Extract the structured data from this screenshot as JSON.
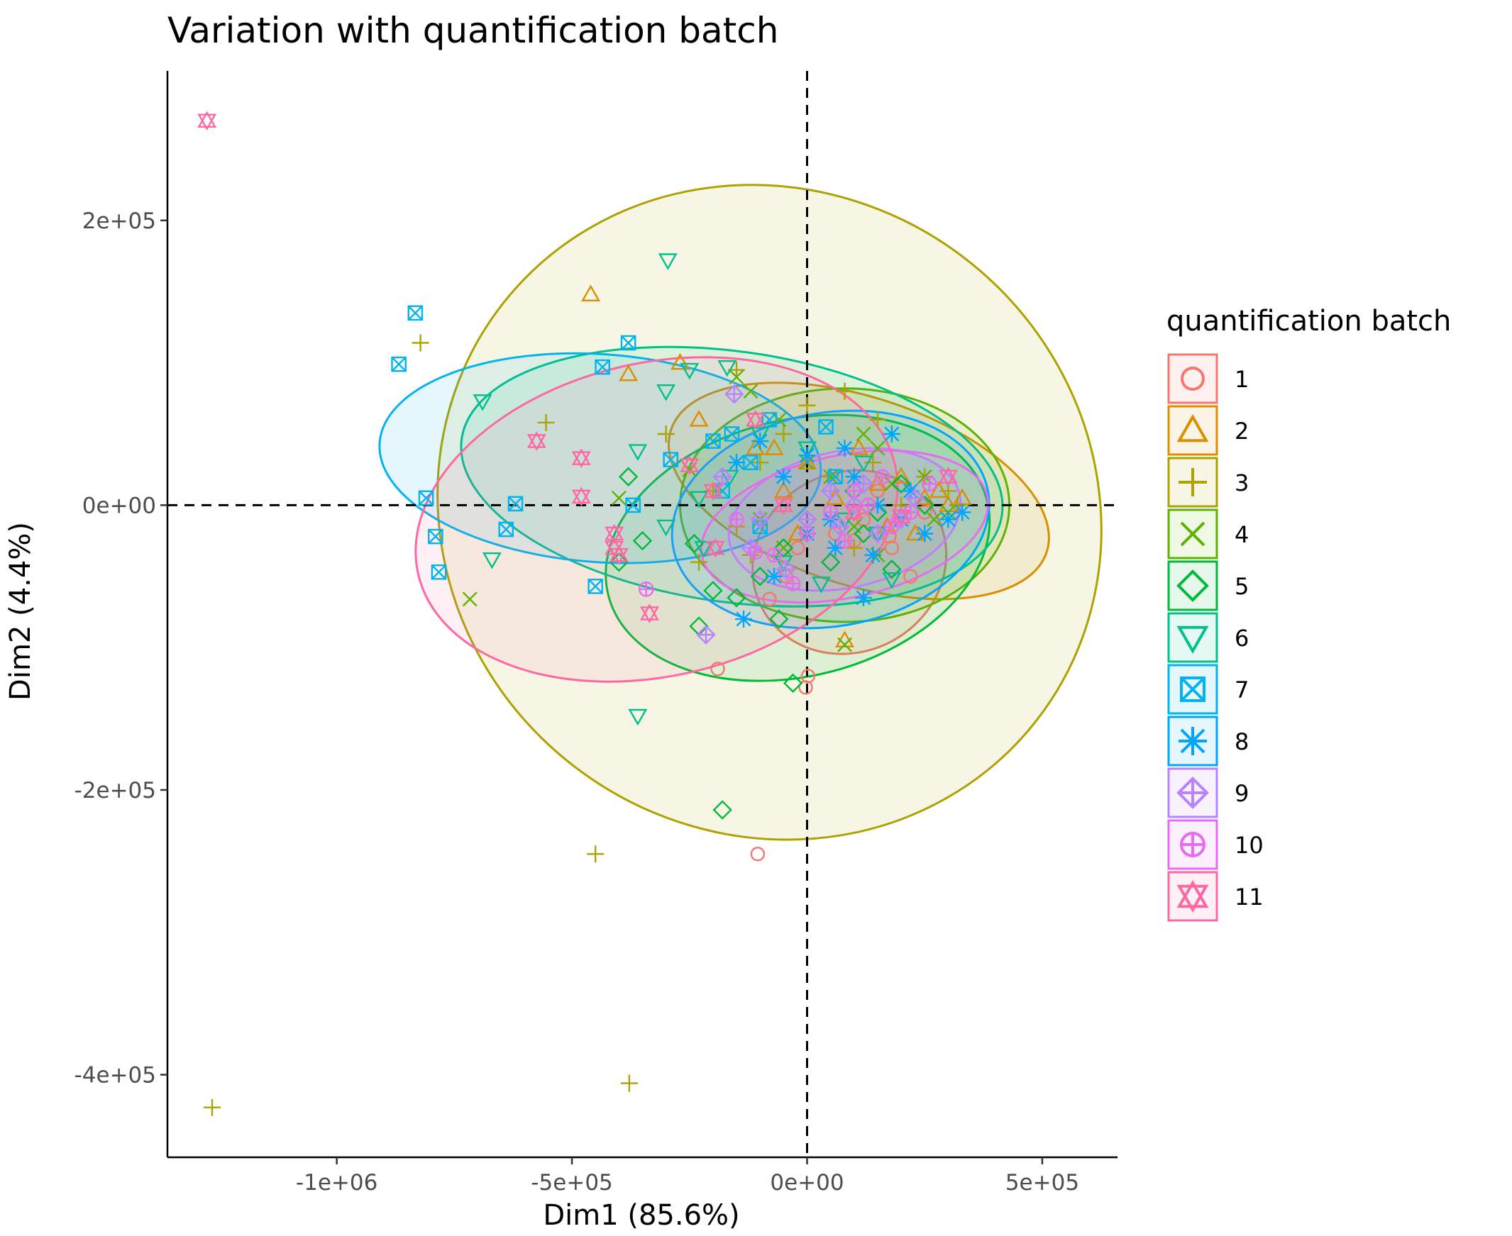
{
  "chart_data": {
    "type": "scatter",
    "title": "Variation with quantification batch",
    "xlabel": "Dim1 (85.6%)",
    "ylabel": "Dim2 (4.4%)",
    "xlim": [
      -1360000,
      660000
    ],
    "ylim": [
      -458000,
      305000
    ],
    "x_ticks": [
      -1000000,
      -500000,
      0,
      500000
    ],
    "x_tick_labels": [
      "-1e+06",
      "-5e+05",
      "0e+00",
      "5e+05"
    ],
    "y_ticks": [
      200000,
      0,
      -200000,
      -400000
    ],
    "y_tick_labels": [
      "2e+05",
      "0e+00",
      "-2e+05",
      "-4e+05"
    ],
    "reference_lines": {
      "x": 0,
      "y": 0,
      "style": "dashed"
    },
    "grid": false,
    "legend": {
      "title": "quantification batch",
      "position": "right"
    },
    "series": [
      {
        "name": "1",
        "color": "#F8766D",
        "shape": "circle-open",
        "ellipse": {
          "cx": 90000,
          "cy": -40000,
          "rx": 210000,
          "ry": 63000,
          "angle": 28
        },
        "points": [
          [
            -190000,
            -115000
          ],
          [
            -105000,
            -245000
          ],
          [
            -3000,
            -128000
          ],
          [
            2000,
            -120000
          ],
          [
            -80000,
            -66000
          ],
          [
            -45000,
            -50000
          ],
          [
            60000,
            -20000
          ],
          [
            120000,
            -10000
          ],
          [
            180000,
            -30000
          ],
          [
            220000,
            -50000
          ],
          [
            150000,
            10000
          ],
          [
            100000,
            -25000
          ],
          [
            250000,
            -5000
          ],
          [
            -20000,
            -30000
          ],
          [
            175000,
            -22000
          ]
        ]
      },
      {
        "name": "2",
        "color": "#DB8E00",
        "shape": "triangle-open",
        "ellipse": {
          "cx": 110000,
          "cy": 10000,
          "rx": 420000,
          "ry": 66000,
          "angle": -18
        },
        "points": [
          [
            -460000,
            148000
          ],
          [
            -380000,
            92000
          ],
          [
            -270000,
            100000
          ],
          [
            -230000,
            60000
          ],
          [
            -110000,
            40000
          ],
          [
            -50000,
            10000
          ],
          [
            0,
            30000
          ],
          [
            80000,
            -95000
          ],
          [
            150000,
            15000
          ],
          [
            200000,
            20000
          ],
          [
            250000,
            5000
          ],
          [
            300000,
            0
          ],
          [
            330000,
            5000
          ],
          [
            -20000,
            -20000
          ],
          [
            110000,
            40000
          ],
          [
            60000,
            5000
          ],
          [
            -70000,
            40000
          ],
          [
            170000,
            -15000
          ],
          [
            230000,
            -20000
          ],
          [
            280000,
            10000
          ]
        ]
      },
      {
        "name": "3",
        "color": "#AEA200",
        "shape": "plus",
        "ellipse": {
          "cx": -80000,
          "cy": -5000,
          "rx": 720000,
          "ry": 225000,
          "angle": -38
        },
        "points": [
          [
            -1265000,
            -423000
          ],
          [
            -378000,
            -406000
          ],
          [
            -450000,
            -245000
          ],
          [
            -822000,
            114000
          ],
          [
            -555000,
            58000
          ],
          [
            -230000,
            -40000
          ],
          [
            -150000,
            -15000
          ],
          [
            -100000,
            30000
          ],
          [
            -50000,
            50000
          ],
          [
            -200000,
            10000
          ],
          [
            0,
            70000
          ],
          [
            80000,
            80000
          ],
          [
            150000,
            60000
          ],
          [
            -150000,
            95000
          ],
          [
            250000,
            20000
          ],
          [
            300000,
            10000
          ],
          [
            100000,
            -30000
          ],
          [
            200000,
            0
          ],
          [
            50000,
            20000
          ],
          [
            -300000,
            50000
          ],
          [
            -120000,
            -35000
          ],
          [
            140000,
            30000
          ],
          [
            320000,
            0
          ]
        ]
      },
      {
        "name": "4",
        "color": "#5EB300",
        "shape": "cross",
        "ellipse": {
          "cx": 80000,
          "cy": 0,
          "rx": 350000,
          "ry": 82000,
          "angle": 0
        },
        "points": [
          [
            -717000,
            -66000
          ],
          [
            -120000,
            80000
          ],
          [
            -150000,
            90000
          ],
          [
            -60000,
            60000
          ],
          [
            0,
            30000
          ],
          [
            50000,
            20000
          ],
          [
            100000,
            -15000
          ],
          [
            80000,
            -98000
          ],
          [
            150000,
            40000
          ],
          [
            200000,
            -10000
          ],
          [
            250000,
            20000
          ],
          [
            300000,
            -5000
          ],
          [
            -50000,
            -30000
          ],
          [
            -250000,
            25000
          ],
          [
            -400000,
            5000
          ],
          [
            150000,
            -35000
          ],
          [
            120000,
            50000
          ],
          [
            270000,
            -10000
          ],
          [
            180000,
            15000
          ],
          [
            -100000,
            -10000
          ]
        ]
      },
      {
        "name": "5",
        "color": "#00BA38",
        "shape": "diamond-open",
        "ellipse": {
          "cx": -20000,
          "cy": -30000,
          "rx": 415000,
          "ry": 90000,
          "angle": 14
        },
        "points": [
          [
            -180000,
            -214000
          ],
          [
            -30000,
            -125000
          ],
          [
            -230000,
            -85000
          ],
          [
            -400000,
            -40000
          ],
          [
            -350000,
            -25000
          ],
          [
            -200000,
            -60000
          ],
          [
            -100000,
            -50000
          ],
          [
            -50000,
            -30000
          ],
          [
            0,
            -10000
          ],
          [
            100000,
            10000
          ],
          [
            150000,
            -5000
          ],
          [
            200000,
            15000
          ],
          [
            -380000,
            20000
          ],
          [
            -240000,
            -27000
          ],
          [
            50000,
            -40000
          ],
          [
            -150000,
            -65000
          ],
          [
            120000,
            -20000
          ],
          [
            250000,
            0
          ],
          [
            -60000,
            -80000
          ],
          [
            180000,
            -45000
          ]
        ]
      },
      {
        "name": "6",
        "color": "#00C08B",
        "shape": "triangle-down-open",
        "ellipse": {
          "cx": -160000,
          "cy": 20000,
          "rx": 580000,
          "ry": 88000,
          "angle": -8
        },
        "points": [
          [
            -296000,
            172000
          ],
          [
            -360000,
            -148000
          ],
          [
            -670000,
            -38000
          ],
          [
            -690000,
            73000
          ],
          [
            -165000,
            20000
          ],
          [
            -230000,
            5000
          ],
          [
            -300000,
            -15000
          ],
          [
            -250000,
            95000
          ],
          [
            -170000,
            97000
          ],
          [
            -300000,
            80000
          ],
          [
            -100000,
            50000
          ],
          [
            0,
            40000
          ],
          [
            80000,
            -10000
          ],
          [
            150000,
            -20000
          ],
          [
            -50000,
            -40000
          ],
          [
            -360000,
            38000
          ],
          [
            30000,
            -55000
          ],
          [
            180000,
            -52000
          ],
          [
            -220000,
            -30000
          ],
          [
            120000,
            30000
          ]
        ]
      },
      {
        "name": "7",
        "color": "#00B4EF",
        "shape": "square-cross",
        "ellipse": {
          "cx": -440000,
          "cy": 33000,
          "rx": 470000,
          "ry": 73000,
          "angle": -4
        },
        "points": [
          [
            -833000,
            135000
          ],
          [
            -868000,
            99000
          ],
          [
            -380000,
            114000
          ],
          [
            -435000,
            97000
          ],
          [
            -810000,
            5000
          ],
          [
            -790000,
            -22000
          ],
          [
            -783000,
            -47000
          ],
          [
            -640000,
            -17000
          ],
          [
            -620000,
            1000
          ],
          [
            -450000,
            -57000
          ],
          [
            -370000,
            0
          ],
          [
            -290000,
            32000
          ],
          [
            -200000,
            45000
          ],
          [
            -160000,
            50000
          ],
          [
            40000,
            55000
          ],
          [
            -120000,
            30000
          ],
          [
            -80000,
            60000
          ],
          [
            -180000,
            10000
          ],
          [
            -100000,
            -15000
          ],
          [
            60000,
            20000
          ]
        ]
      },
      {
        "name": "8",
        "color": "#00A5FF",
        "shape": "asterisk",
        "ellipse": {
          "cx": 50000,
          "cy": -10000,
          "rx": 340000,
          "ry": 75000,
          "angle": 10
        },
        "points": [
          [
            -135000,
            -80000
          ],
          [
            -70000,
            -50000
          ],
          [
            0,
            -20000
          ],
          [
            50000,
            -10000
          ],
          [
            100000,
            20000
          ],
          [
            150000,
            0
          ],
          [
            200000,
            -10000
          ],
          [
            250000,
            -20000
          ],
          [
            300000,
            -10000
          ],
          [
            330000,
            -5000
          ],
          [
            120000,
            -65000
          ],
          [
            -50000,
            20000
          ],
          [
            0,
            35000
          ],
          [
            80000,
            40000
          ],
          [
            -150000,
            30000
          ],
          [
            180000,
            50000
          ],
          [
            -100000,
            45000
          ],
          [
            220000,
            10000
          ],
          [
            60000,
            -30000
          ],
          [
            140000,
            -35000
          ]
        ]
      },
      {
        "name": "9",
        "color": "#B983FF",
        "shape": "diamond-plus",
        "ellipse": {
          "cx": 80000,
          "cy": -10000,
          "rx": 250000,
          "ry": 48000,
          "angle": 12
        },
        "points": [
          [
            -215000,
            -91000
          ],
          [
            -155000,
            78000
          ],
          [
            -180000,
            20000
          ],
          [
            -100000,
            -10000
          ],
          [
            -45000,
            -45000
          ],
          [
            0,
            -10000
          ],
          [
            50000,
            10000
          ],
          [
            100000,
            0
          ],
          [
            150000,
            -20000
          ],
          [
            200000,
            -10000
          ],
          [
            -120000,
            -30000
          ],
          [
            120000,
            15000
          ],
          [
            230000,
            5000
          ],
          [
            70000,
            -15000
          ]
        ]
      },
      {
        "name": "10",
        "color": "#E76BF3",
        "shape": "circle-plus",
        "ellipse": {
          "cx": 80000,
          "cy": -15000,
          "rx": 310000,
          "ry": 50000,
          "angle": 12
        },
        "points": [
          [
            -342000,
            -59000
          ],
          [
            -110000,
            -33000
          ],
          [
            -70000,
            -35000
          ],
          [
            0,
            -20000
          ],
          [
            50000,
            -5000
          ],
          [
            100000,
            10000
          ],
          [
            130000,
            0
          ],
          [
            180000,
            -15000
          ],
          [
            220000,
            -5000
          ],
          [
            260000,
            15000
          ],
          [
            -30000,
            -55000
          ],
          [
            80000,
            -25000
          ],
          [
            160000,
            20000
          ],
          [
            -150000,
            -10000
          ]
        ]
      },
      {
        "name": "11",
        "color": "#FF67A4",
        "shape": "star-of-david",
        "ellipse": {
          "cx": -320000,
          "cy": -10000,
          "rx": 520000,
          "ry": 110000,
          "angle": 13
        },
        "points": [
          [
            -1276000,
            270000
          ],
          [
            -575000,
            45000
          ],
          [
            -480000,
            33000
          ],
          [
            -480000,
            6000
          ],
          [
            -410000,
            -20000
          ],
          [
            -410000,
            -30000
          ],
          [
            -400000,
            -35000
          ],
          [
            -335000,
            -76000
          ],
          [
            -250000,
            28000
          ],
          [
            -200000,
            10000
          ],
          [
            -195000,
            -30000
          ],
          [
            -110000,
            60000
          ],
          [
            -50000,
            0
          ],
          [
            100000,
            -5000
          ],
          [
            200000,
            -8000
          ],
          [
            300000,
            20000
          ]
        ]
      }
    ]
  }
}
